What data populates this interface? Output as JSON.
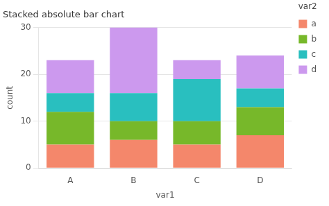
{
  "chart_data": {
    "type": "bar",
    "stacked": true,
    "title": "Stacked absolute bar chart",
    "xlabel": "var1",
    "ylabel": "count",
    "legend_title": "var2",
    "categories": [
      "A",
      "B",
      "C",
      "D"
    ],
    "series": [
      {
        "name": "a",
        "color": "#F4876B",
        "values": [
          5,
          6,
          5,
          7
        ]
      },
      {
        "name": "b",
        "color": "#77B82A",
        "values": [
          7,
          4,
          5,
          6
        ]
      },
      {
        "name": "c",
        "color": "#29BFBF",
        "values": [
          4,
          6,
          9,
          4
        ]
      },
      {
        "name": "d",
        "color": "#CC99EE",
        "values": [
          7,
          14,
          4,
          7
        ]
      }
    ],
    "ylim": [
      0,
      30
    ],
    "yticks": [
      0,
      10,
      20,
      30
    ],
    "grid": true,
    "legend": "right"
  }
}
